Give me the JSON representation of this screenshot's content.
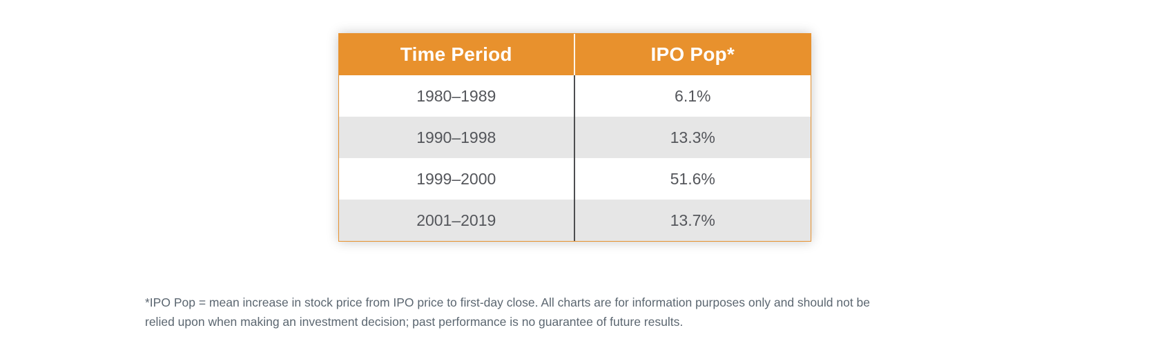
{
  "chart_data": {
    "type": "table",
    "columns": [
      "Time Period",
      "IPO Pop*"
    ],
    "rows": [
      [
        "1980–1989",
        "6.1%"
      ],
      [
        "1990–1998",
        "13.3%"
      ],
      [
        "1999–2000",
        "51.6%"
      ],
      [
        "2001–2019",
        "13.7%"
      ]
    ],
    "footnote": "*IPO Pop = mean increase in stock price from IPO price to first-day close. All charts are for information purposes only and should not be relied upon when making an investment decision; past performance is no guarantee of future results.",
    "layout": {
      "header_position": "top",
      "alternating_rows": true,
      "grid": "column-divider-only"
    }
  },
  "table": {
    "headers": {
      "time_period": "Time Period",
      "ipo_pop": "IPO Pop*"
    },
    "rows": [
      {
        "period": "1980–1989",
        "pop": "6.1%"
      },
      {
        "period": "1990–1998",
        "pop": "13.3%"
      },
      {
        "period": "1999–2000",
        "pop": "51.6%"
      },
      {
        "period": "2001–2019",
        "pop": "13.7%"
      }
    ]
  },
  "footnote": {
    "line1": "*IPO Pop = mean increase in stock price from IPO price to first-day close. All charts are for information purposes only and should not be",
    "line2": "relied upon when making an investment decision; past performance is no guarantee of future results."
  },
  "colors": {
    "header_bg": "#E8912D",
    "header_text": "#FFFFFF",
    "row_bg": "#FFFFFF",
    "row_alt_bg": "#E6E6E6",
    "cell_text": "#54565B",
    "column_divider": "#4D4E50",
    "header_divider": "#FFFFFF",
    "table_border": "#E8912D",
    "footnote_text": "#5B6670"
  }
}
